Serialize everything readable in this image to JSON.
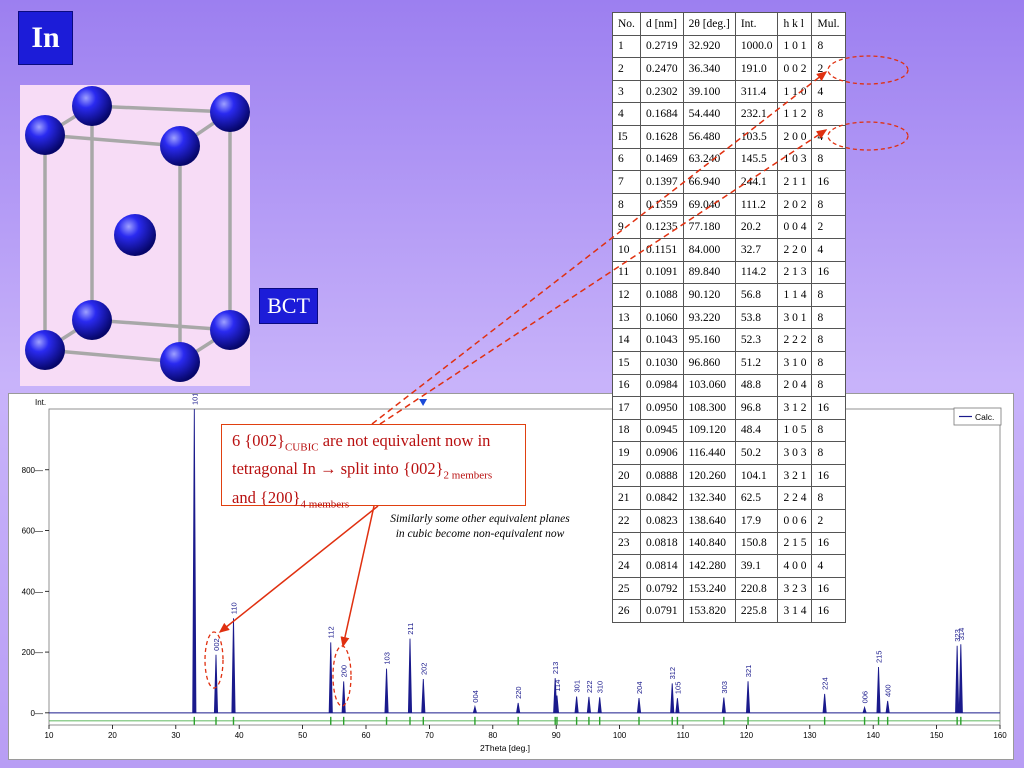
{
  "slide": {
    "title": "In",
    "structure_label": "BCT"
  },
  "table": {
    "headers": [
      "No.",
      "d [nm]",
      "2θ [deg.]",
      "Int.",
      "h k l",
      "Mul."
    ],
    "rows": [
      [
        "1",
        "0.2719",
        "32.920",
        "1000.0",
        "1 0 1",
        "8"
      ],
      [
        "2",
        "0.2470",
        "36.340",
        "191.0",
        "0 0 2",
        "2"
      ],
      [
        "3",
        "0.2302",
        "39.100",
        "311.4",
        "1 1 0",
        "4"
      ],
      [
        "4",
        "0.1684",
        "54.440",
        "232.1",
        "1 1 2",
        "8"
      ],
      [
        "I5",
        "0.1628",
        "56.480",
        "103.5",
        "2 0 0",
        "4"
      ],
      [
        "6",
        "0.1469",
        "63.240",
        "145.5",
        "1 0 3",
        "8"
      ],
      [
        "7",
        "0.1397",
        "66.940",
        "244.1",
        "2 1 1",
        "16"
      ],
      [
        "8",
        "0.1359",
        "69.040",
        "111.2",
        "2 0 2",
        "8"
      ],
      [
        "9",
        "0.1235",
        "77.180",
        "20.2",
        "0 0 4",
        "2"
      ],
      [
        "10",
        "0.1151",
        "84.000",
        "32.7",
        "2 2 0",
        "4"
      ],
      [
        "11",
        "0.1091",
        "89.840",
        "114.2",
        "2 1 3",
        "16"
      ],
      [
        "12",
        "0.1088",
        "90.120",
        "56.8",
        "1 1 4",
        "8"
      ],
      [
        "13",
        "0.1060",
        "93.220",
        "53.8",
        "3 0 1",
        "8"
      ],
      [
        "14",
        "0.1043",
        "95.160",
        "52.3",
        "2 2 2",
        "8"
      ],
      [
        "15",
        "0.1030",
        "96.860",
        "51.2",
        "3 1 0",
        "8"
      ],
      [
        "16",
        "0.0984",
        "103.060",
        "48.8",
        "2 0 4",
        "8"
      ],
      [
        "17",
        "0.0950",
        "108.300",
        "96.8",
        "3 1 2",
        "16"
      ],
      [
        "18",
        "0.0945",
        "109.120",
        "48.4",
        "1 0 5",
        "8"
      ],
      [
        "19",
        "0.0906",
        "116.440",
        "50.2",
        "3 0 3",
        "8"
      ],
      [
        "20",
        "0.0888",
        "120.260",
        "104.1",
        "3 2 1",
        "16"
      ],
      [
        "21",
        "0.0842",
        "132.340",
        "62.5",
        "2 2 4",
        "8"
      ],
      [
        "22",
        "0.0823",
        "138.640",
        "17.9",
        "0 0 6",
        "2"
      ],
      [
        "23",
        "0.0818",
        "140.840",
        "150.8",
        "2 1 5",
        "16"
      ],
      [
        "24",
        "0.0814",
        "142.280",
        "39.1",
        "4 0 0",
        "4"
      ],
      [
        "25",
        "0.0792",
        "153.240",
        "220.8",
        "3 2 3",
        "16"
      ],
      [
        "26",
        "0.0791",
        "153.820",
        "225.8",
        "3 1 4",
        "16"
      ]
    ]
  },
  "callout": {
    "part1": "6 {002}",
    "sub1": "CUBIC",
    "part2": " are not equivalent now in tetragonal In → split into {002}",
    "sub2": "2 members",
    "part3": " and {200}",
    "sub3": "4 members"
  },
  "note": "Similarly some other equivalent planes in cubic become non-equivalent now",
  "chart_data": {
    "type": "line",
    "ylabel": "Int.",
    "xlabel": "2Theta [deg.]",
    "xlim": [
      10,
      160
    ],
    "ylim": [
      -40,
      1000
    ],
    "xticks": [
      10,
      20,
      30,
      40,
      50,
      60,
      70,
      80,
      90,
      100,
      110,
      120,
      130,
      140,
      150,
      160
    ],
    "yticks": [
      0,
      200,
      400,
      600,
      800
    ],
    "legend": {
      "label": "Calc.",
      "position": "top-right"
    },
    "series": [
      {
        "name": "Calc.",
        "peaks": [
          {
            "x": 32.92,
            "y": 1000.0,
            "label": "101"
          },
          {
            "x": 36.34,
            "y": 191.0,
            "label": "002"
          },
          {
            "x": 39.1,
            "y": 311.4,
            "label": "110"
          },
          {
            "x": 54.44,
            "y": 232.1,
            "label": "112"
          },
          {
            "x": 56.48,
            "y": 103.5,
            "label": "200"
          },
          {
            "x": 63.24,
            "y": 145.5,
            "label": "103"
          },
          {
            "x": 66.94,
            "y": 244.1,
            "label": "211"
          },
          {
            "x": 69.04,
            "y": 111.2,
            "label": "202"
          },
          {
            "x": 77.18,
            "y": 20.2,
            "label": "004"
          },
          {
            "x": 84.0,
            "y": 32.7,
            "label": "220"
          },
          {
            "x": 89.84,
            "y": 114.2,
            "label": "213"
          },
          {
            "x": 90.12,
            "y": 56.8,
            "label": "114"
          },
          {
            "x": 93.22,
            "y": 53.8,
            "label": "301"
          },
          {
            "x": 95.16,
            "y": 52.3,
            "label": "222"
          },
          {
            "x": 96.86,
            "y": 51.2,
            "label": "310"
          },
          {
            "x": 103.06,
            "y": 48.8,
            "label": "204"
          },
          {
            "x": 108.3,
            "y": 96.8,
            "label": "312"
          },
          {
            "x": 109.12,
            "y": 48.4,
            "label": "105"
          },
          {
            "x": 116.44,
            "y": 50.2,
            "label": "303"
          },
          {
            "x": 120.26,
            "y": 104.1,
            "label": "321"
          },
          {
            "x": 132.34,
            "y": 62.5,
            "label": "224"
          },
          {
            "x": 138.64,
            "y": 17.9,
            "label": "006"
          },
          {
            "x": 140.84,
            "y": 150.8,
            "label": "215"
          },
          {
            "x": 142.28,
            "y": 39.1,
            "label": "400"
          },
          {
            "x": 153.24,
            "y": 220.8,
            "label": "323"
          },
          {
            "x": 153.82,
            "y": 225.8,
            "label": "314"
          }
        ]
      }
    ],
    "marker_x": 69.0
  },
  "colors": {
    "accent_blue": "#1c1cd8",
    "peak_blue": "#1a1a8c",
    "tick_green": "#2aa02a",
    "arrow_red": "#e03010",
    "atom_blue": "#1010d0"
  }
}
